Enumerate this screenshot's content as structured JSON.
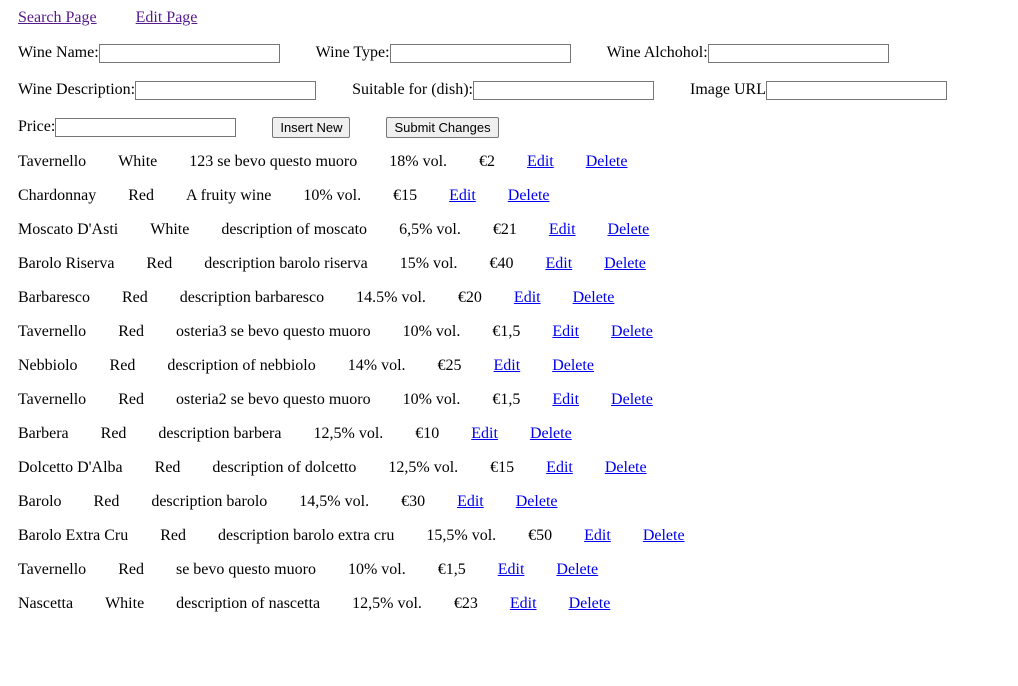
{
  "nav": {
    "search_label": "Search Page",
    "edit_label": "Edit Page"
  },
  "form": {
    "wine_name_label": "Wine Name:",
    "wine_type_label": "Wine Type:",
    "wine_alcohol_label": "Wine Alchohol:",
    "wine_description_label": "Wine Description:",
    "suitable_label": "Suitable for (dish):",
    "image_url_label": "Image URL",
    "price_label": "Price:",
    "wine_name_value": "",
    "wine_type_value": "",
    "wine_alcohol_value": "",
    "wine_description_value": "",
    "suitable_value": "",
    "image_url_value": "",
    "price_value": "",
    "insert_label": "Insert New",
    "submit_label": "Submit Changes"
  },
  "wines": [
    {
      "name": "Tavernello",
      "type": "White",
      "description": "123 se bevo questo muoro",
      "alcohol": "18% vol.",
      "price": "€2",
      "edit": "Edit",
      "delete": "Delete"
    },
    {
      "name": "Chardonnay",
      "type": "Red",
      "description": "A fruity wine",
      "alcohol": "10% vol.",
      "price": "€15",
      "edit": "Edit",
      "delete": "Delete"
    },
    {
      "name": "Moscato D'Asti",
      "type": "White",
      "description": "description of moscato",
      "alcohol": "6,5% vol.",
      "price": "€21",
      "edit": "Edit",
      "delete": "Delete"
    },
    {
      "name": "Barolo Riserva",
      "type": "Red",
      "description": "description barolo riserva",
      "alcohol": "15% vol.",
      "price": "€40",
      "edit": "Edit",
      "delete": "Delete"
    },
    {
      "name": "Barbaresco",
      "type": "Red",
      "description": "description barbaresco",
      "alcohol": "14.5% vol.",
      "price": "€20",
      "edit": "Edit",
      "delete": "Delete"
    },
    {
      "name": "Tavernello",
      "type": "Red",
      "description": "osteria3 se bevo questo muoro",
      "alcohol": "10% vol.",
      "price": "€1,5",
      "edit": "Edit",
      "delete": "Delete"
    },
    {
      "name": "Nebbiolo",
      "type": "Red",
      "description": "description of nebbiolo",
      "alcohol": "14% vol.",
      "price": "€25",
      "edit": "Edit",
      "delete": "Delete"
    },
    {
      "name": "Tavernello",
      "type": "Red",
      "description": "osteria2 se bevo questo muoro",
      "alcohol": "10% vol.",
      "price": "€1,5",
      "edit": "Edit",
      "delete": "Delete"
    },
    {
      "name": "Barbera",
      "type": "Red",
      "description": "description barbera",
      "alcohol": "12,5% vol.",
      "price": "€10",
      "edit": "Edit",
      "delete": "Delete"
    },
    {
      "name": "Dolcetto D'Alba",
      "type": "Red",
      "description": "description of dolcetto",
      "alcohol": "12,5% vol.",
      "price": "€15",
      "edit": "Edit",
      "delete": "Delete"
    },
    {
      "name": "Barolo",
      "type": "Red",
      "description": "description barolo",
      "alcohol": "14,5% vol.",
      "price": "€30",
      "edit": "Edit",
      "delete": "Delete"
    },
    {
      "name": "Barolo Extra Cru",
      "type": "Red",
      "description": "description barolo extra cru",
      "alcohol": "15,5% vol.",
      "price": "€50",
      "edit": "Edit",
      "delete": "Delete"
    },
    {
      "name": "Tavernello",
      "type": "Red",
      "description": "se bevo questo muoro",
      "alcohol": "10% vol.",
      "price": "€1,5",
      "edit": "Edit",
      "delete": "Delete"
    },
    {
      "name": "Nascetta",
      "type": "White",
      "description": "description of nascetta",
      "alcohol": "12,5% vol.",
      "price": "€23",
      "edit": "Edit",
      "delete": "Delete"
    }
  ]
}
